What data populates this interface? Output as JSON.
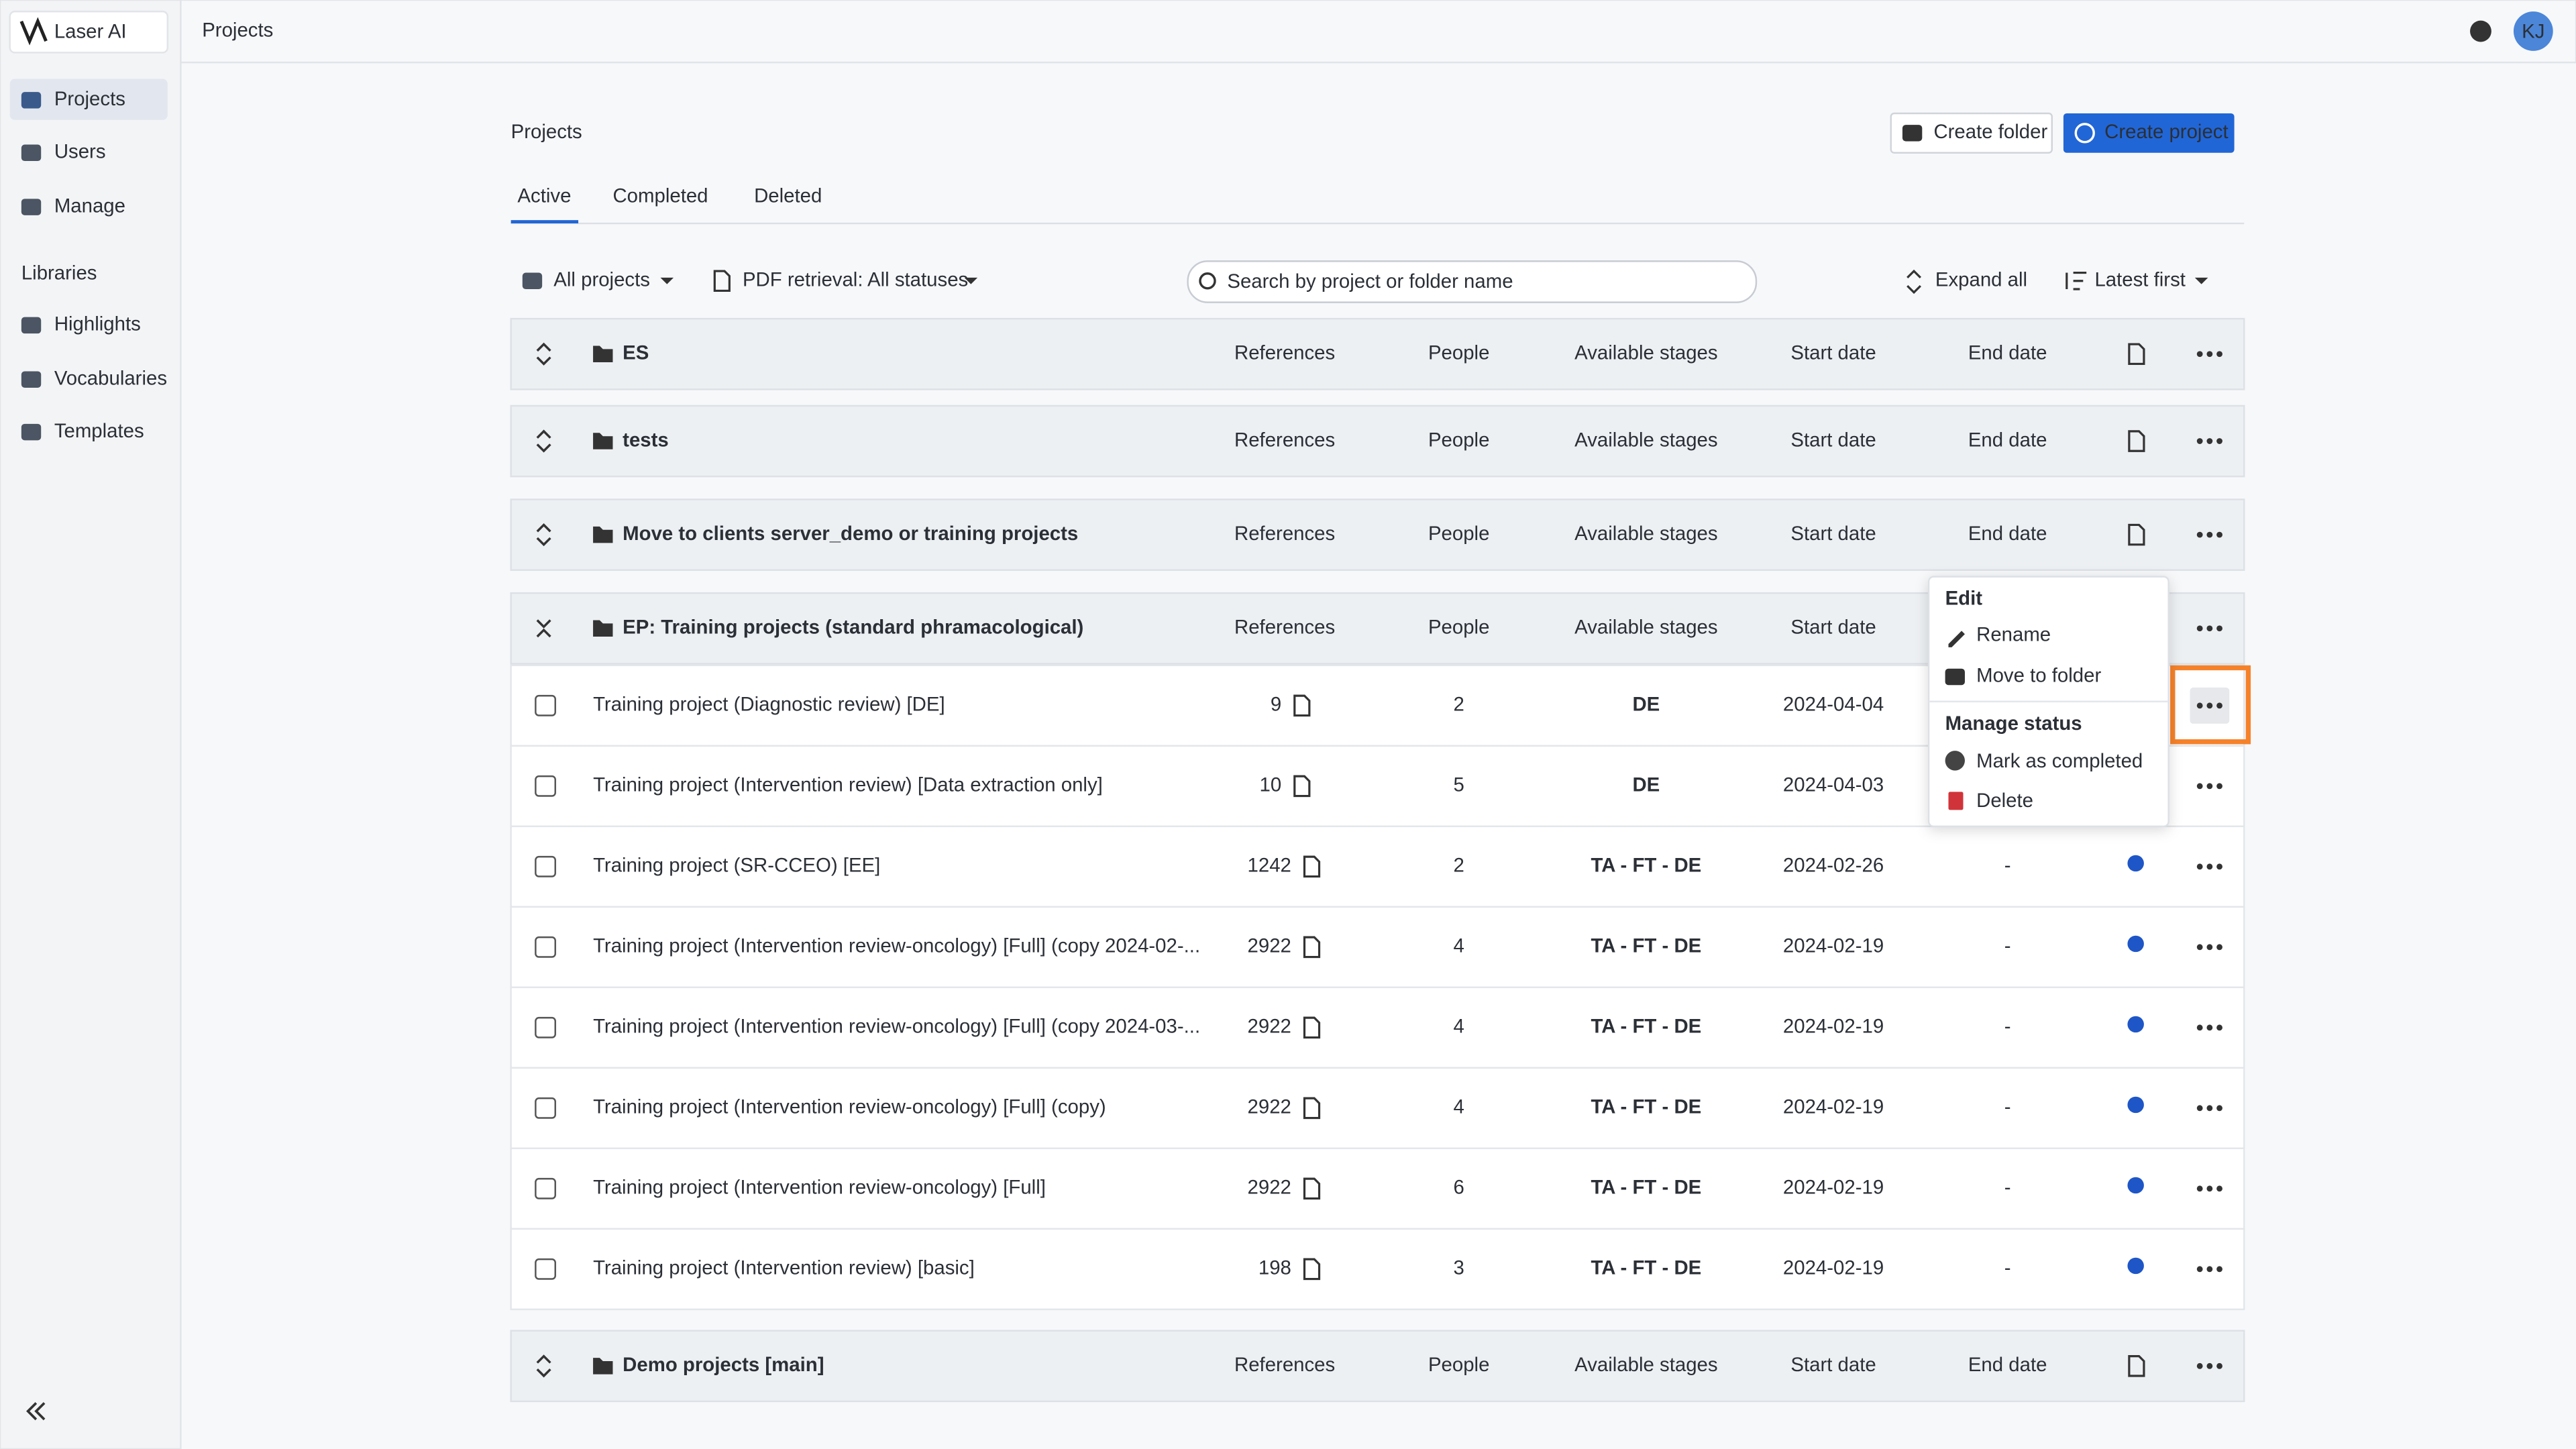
{
  "app": {
    "name": "Laser AI",
    "breadcrumb": "Projects",
    "avatar": "KJ"
  },
  "sidebar": {
    "nav": [
      "Projects",
      "Users",
      "Manage"
    ],
    "libraries_heading": "Libraries",
    "libraries": [
      "Highlights",
      "Vocabularies",
      "Templates"
    ]
  },
  "page": {
    "title": "Projects",
    "buttons": [
      "Create folder",
      "Create project"
    ],
    "tabs": [
      "Active",
      "Completed",
      "Deleted"
    ],
    "filters": [
      "All projects",
      "PDF retrieval: All statuses"
    ],
    "search_placeholder": "Search by project or folder name",
    "expand": "Expand all",
    "sort": "Latest first"
  },
  "columns": [
    "References",
    "People",
    "Available stages",
    "Start date",
    "End date"
  ],
  "folders": [
    {
      "name": "ES"
    },
    {
      "name": "tests"
    },
    {
      "name": "Move to clients server_demo or training projects"
    },
    {
      "name": "EP: Training projects (standard phramacological)",
      "projects": [
        {
          "name": "Training project (Diagnostic review) [DE]",
          "references": "9",
          "people": "2",
          "stages": "DE",
          "start": "2024-04-04"
        },
        {
          "name": "Training project (Intervention review) [Data extraction only]",
          "references": "10",
          "people": "5",
          "stages": "DE",
          "start": "2024-04-03"
        },
        {
          "name": "Training project (SR-CCEO) [EE]",
          "references": "1242",
          "people": "2",
          "stages": "TA - FT - DE",
          "start": "2024-02-26",
          "end": "-"
        },
        {
          "name": "Training project (Intervention review-oncology) [Full] (copy 2024-02-...",
          "references": "2922",
          "people": "4",
          "stages": "TA - FT - DE",
          "start": "2024-02-19",
          "end": "-"
        },
        {
          "name": "Training project (Intervention review-oncology) [Full] (copy 2024-03-...",
          "references": "2922",
          "people": "4",
          "stages": "TA - FT - DE",
          "start": "2024-02-19",
          "end": "-"
        },
        {
          "name": "Training project (Intervention review-oncology) [Full] (copy)",
          "references": "2922",
          "people": "4",
          "stages": "TA - FT - DE",
          "start": "2024-02-19",
          "end": "-"
        },
        {
          "name": "Training project (Intervention review-oncology) [Full]",
          "references": "2922",
          "people": "6",
          "stages": "TA - FT - DE",
          "start": "2024-02-19",
          "end": "-"
        },
        {
          "name": "Training project (Intervention review) [basic]",
          "references": "198",
          "people": "3",
          "stages": "TA - FT - DE",
          "start": "2024-02-19",
          "end": "-"
        }
      ]
    },
    {
      "name": "Demo projects [main]"
    }
  ],
  "menu": {
    "edit_heading": "Edit",
    "edit_items": [
      "Rename",
      "Move to folder"
    ],
    "status_heading": "Manage status",
    "status_items": [
      "Mark as completed",
      "Delete"
    ]
  }
}
